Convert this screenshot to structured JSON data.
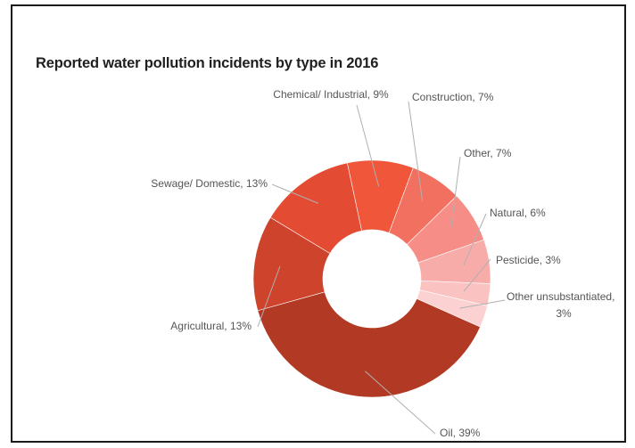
{
  "chart_data": {
    "type": "pie",
    "title": "Reported water pollution incidents by type in 2016",
    "donut": true,
    "slices": [
      {
        "label": "Chemical/ Industrial, 9%",
        "name": "Chemical/ Industrial",
        "value": 9,
        "color": "#ef563a"
      },
      {
        "label": "Construction, 7%",
        "name": "Construction",
        "value": 7,
        "color": "#f2705f"
      },
      {
        "label": "Other, 7%",
        "name": "Other",
        "value": 7,
        "color": "#f68e87"
      },
      {
        "label": "Natural, 6%",
        "name": "Natural",
        "value": 6,
        "color": "#f8acaa"
      },
      {
        "label": "Pesticide, 3%",
        "name": "Pesticide",
        "value": 3,
        "color": "#fac3c2"
      },
      {
        "label": "Other unsubstantiated, 3%",
        "name": "Other unsubstantiated",
        "value": 3,
        "color": "#fbd2d1"
      },
      {
        "label": "Oil, 39%",
        "name": "Oil",
        "value": 39,
        "color": "#b23a24"
      },
      {
        "label": "Agricultural, 13%",
        "name": "Agricultural",
        "value": 13,
        "color": "#cd432c"
      },
      {
        "label": "Sewage/ Domestic, 13%",
        "name": "Sewage/ Domestic",
        "value": 13,
        "color": "#e34c33"
      }
    ]
  }
}
